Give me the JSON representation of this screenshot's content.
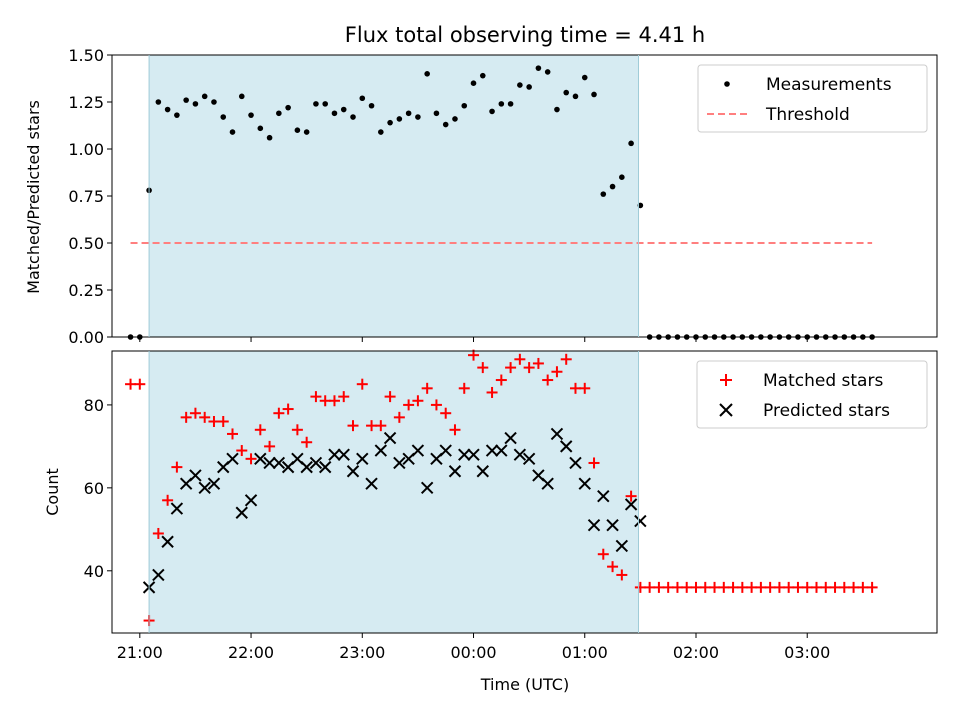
{
  "chart_data": [
    {
      "type": "scatter",
      "title": "Flux total observing time = 4.41 h",
      "ylabel": "Matched/Predicted stars",
      "xlabel": "",
      "ylim": [
        0,
        1.5
      ],
      "yticks": [
        "0.00",
        "0.25",
        "0.50",
        "0.75",
        "1.00",
        "1.25",
        "1.50"
      ],
      "xticks": [
        "21:00",
        "22:00",
        "23:00",
        "00:00",
        "01:00",
        "02:00",
        "03:00"
      ],
      "xlim": [
        "20:45",
        "04:10"
      ],
      "shaded_interval": [
        "21:05",
        "01:29"
      ],
      "legend_position": "upper right",
      "grid": false,
      "series": [
        {
          "name": "Measurements",
          "marker": "dot",
          "color": "#000000",
          "x": [
            "20:55",
            "21:00",
            "21:05",
            "21:10",
            "21:15",
            "21:20",
            "21:25",
            "21:30",
            "21:35",
            "21:40",
            "21:45",
            "21:50",
            "21:55",
            "22:00",
            "22:05",
            "22:10",
            "22:15",
            "22:20",
            "22:25",
            "22:30",
            "22:35",
            "22:40",
            "22:45",
            "22:50",
            "22:55",
            "23:00",
            "23:05",
            "23:10",
            "23:15",
            "23:20",
            "23:25",
            "23:30",
            "23:35",
            "23:40",
            "23:45",
            "23:50",
            "23:55",
            "00:00",
            "00:05",
            "00:10",
            "00:15",
            "00:20",
            "00:25",
            "00:30",
            "00:35",
            "00:40",
            "00:45",
            "00:50",
            "00:55",
            "01:00",
            "01:05",
            "01:10",
            "01:15",
            "01:20",
            "01:25",
            "01:30",
            "01:35",
            "01:40",
            "01:45",
            "01:50",
            "01:55",
            "02:00",
            "02:05",
            "02:10",
            "02:15",
            "02:20",
            "02:25",
            "02:30",
            "02:35",
            "02:40",
            "02:45",
            "02:50",
            "02:55",
            "03:00",
            "03:05",
            "03:10",
            "03:15",
            "03:20",
            "03:25",
            "03:30",
            "03:35"
          ],
          "y": [
            0.0,
            0.0,
            0.78,
            1.25,
            1.21,
            1.18,
            1.26,
            1.24,
            1.28,
            1.25,
            1.17,
            1.09,
            1.28,
            1.18,
            1.11,
            1.06,
            1.19,
            1.22,
            1.1,
            1.09,
            1.24,
            1.24,
            1.19,
            1.21,
            1.17,
            1.27,
            1.23,
            1.09,
            1.14,
            1.16,
            1.19,
            1.17,
            1.4,
            1.19,
            1.13,
            1.16,
            1.23,
            1.35,
            1.39,
            1.2,
            1.24,
            1.24,
            1.34,
            1.33,
            1.43,
            1.41,
            1.21,
            1.3,
            1.28,
            1.38,
            1.29,
            0.76,
            0.8,
            0.85,
            1.03,
            0.7,
            0.0,
            0.0,
            0.0,
            0.0,
            0.0,
            0.0,
            0.0,
            0.0,
            0.0,
            0.0,
            0.0,
            0.0,
            0.0,
            0.0,
            0.0,
            0.0,
            0.0,
            0.0,
            0.0,
            0.0,
            0.0,
            0.0,
            0.0,
            0.0,
            0.0
          ]
        },
        {
          "name": "Threshold",
          "line": "dashed",
          "color": "#ff7f7f",
          "x": [
            "20:55",
            "03:35"
          ],
          "y": [
            0.5,
            0.5
          ]
        }
      ]
    },
    {
      "type": "scatter",
      "title": "",
      "ylabel": "Count",
      "xlabel": "Time (UTC)",
      "ylim": [
        25,
        93
      ],
      "yticks": [
        "40",
        "60",
        "80"
      ],
      "xticks": [
        "21:00",
        "22:00",
        "23:00",
        "00:00",
        "01:00",
        "02:00",
        "03:00"
      ],
      "xlim": [
        "20:45",
        "04:10"
      ],
      "shaded_interval": [
        "21:05",
        "01:29"
      ],
      "legend_position": "upper right",
      "grid": false,
      "series": [
        {
          "name": "Matched stars",
          "marker": "plus",
          "color": "#ff0000",
          "x": [
            "20:55",
            "21:00",
            "21:05",
            "21:10",
            "21:15",
            "21:20",
            "21:25",
            "21:30",
            "21:35",
            "21:40",
            "21:45",
            "21:50",
            "21:55",
            "22:00",
            "22:05",
            "22:10",
            "22:15",
            "22:20",
            "22:25",
            "22:30",
            "22:35",
            "22:40",
            "22:45",
            "22:50",
            "22:55",
            "23:00",
            "23:05",
            "23:10",
            "23:15",
            "23:20",
            "23:25",
            "23:30",
            "23:35",
            "23:40",
            "23:45",
            "23:50",
            "23:55",
            "00:00",
            "00:05",
            "00:10",
            "00:15",
            "00:20",
            "00:25",
            "00:30",
            "00:35",
            "00:40",
            "00:45",
            "00:50",
            "00:55",
            "01:00",
            "01:05",
            "01:10",
            "01:15",
            "01:20",
            "01:25",
            "01:30",
            "01:35",
            "01:40",
            "01:45",
            "01:50",
            "01:55",
            "02:00",
            "02:05",
            "02:10",
            "02:15",
            "02:20",
            "02:25",
            "02:30",
            "02:35",
            "02:40",
            "02:45",
            "02:50",
            "02:55",
            "03:00",
            "03:05",
            "03:10",
            "03:15",
            "03:20",
            "03:25",
            "03:30",
            "03:35"
          ],
          "y": [
            85,
            85,
            28,
            49,
            57,
            65,
            77,
            78,
            77,
            76,
            76,
            73,
            69,
            67,
            74,
            70,
            78,
            79,
            74,
            71,
            82,
            81,
            81,
            82,
            75,
            85,
            75,
            75,
            82,
            77,
            80,
            81,
            84,
            80,
            78,
            74,
            84,
            92,
            89,
            83,
            86,
            89,
            91,
            89,
            90,
            86,
            88,
            91,
            84,
            84,
            66,
            44,
            41,
            39,
            58,
            36,
            36,
            36,
            36,
            36,
            36,
            36,
            36,
            36,
            36,
            36,
            36,
            36,
            36,
            36,
            36,
            36,
            36,
            36,
            36,
            36,
            36,
            36,
            36,
            36,
            36
          ]
        },
        {
          "name": "Predicted stars",
          "marker": "x",
          "color": "#000000",
          "x": [
            "21:05",
            "21:10",
            "21:15",
            "21:20",
            "21:25",
            "21:30",
            "21:35",
            "21:40",
            "21:45",
            "21:50",
            "21:55",
            "22:00",
            "22:05",
            "22:10",
            "22:15",
            "22:20",
            "22:25",
            "22:30",
            "22:35",
            "22:40",
            "22:45",
            "22:50",
            "22:55",
            "23:00",
            "23:05",
            "23:10",
            "23:15",
            "23:20",
            "23:25",
            "23:30",
            "23:35",
            "23:40",
            "23:45",
            "23:50",
            "23:55",
            "00:00",
            "00:05",
            "00:10",
            "00:15",
            "00:20",
            "00:25",
            "00:30",
            "00:35",
            "00:40",
            "00:45",
            "00:50",
            "00:55",
            "01:00",
            "01:05",
            "01:10",
            "01:15",
            "01:20",
            "01:25",
            "01:30"
          ],
          "y": [
            36,
            39,
            47,
            55,
            61,
            63,
            60,
            61,
            65,
            67,
            54,
            57,
            67,
            66,
            66,
            65,
            67,
            65,
            66,
            65,
            68,
            68,
            64,
            67,
            61,
            69,
            72,
            66,
            67,
            69,
            60,
            67,
            69,
            64,
            68,
            68,
            64,
            69,
            69,
            72,
            68,
            67,
            63,
            61,
            73,
            70,
            66,
            61,
            51,
            58,
            51,
            46,
            56,
            52
          ]
        }
      ]
    }
  ]
}
